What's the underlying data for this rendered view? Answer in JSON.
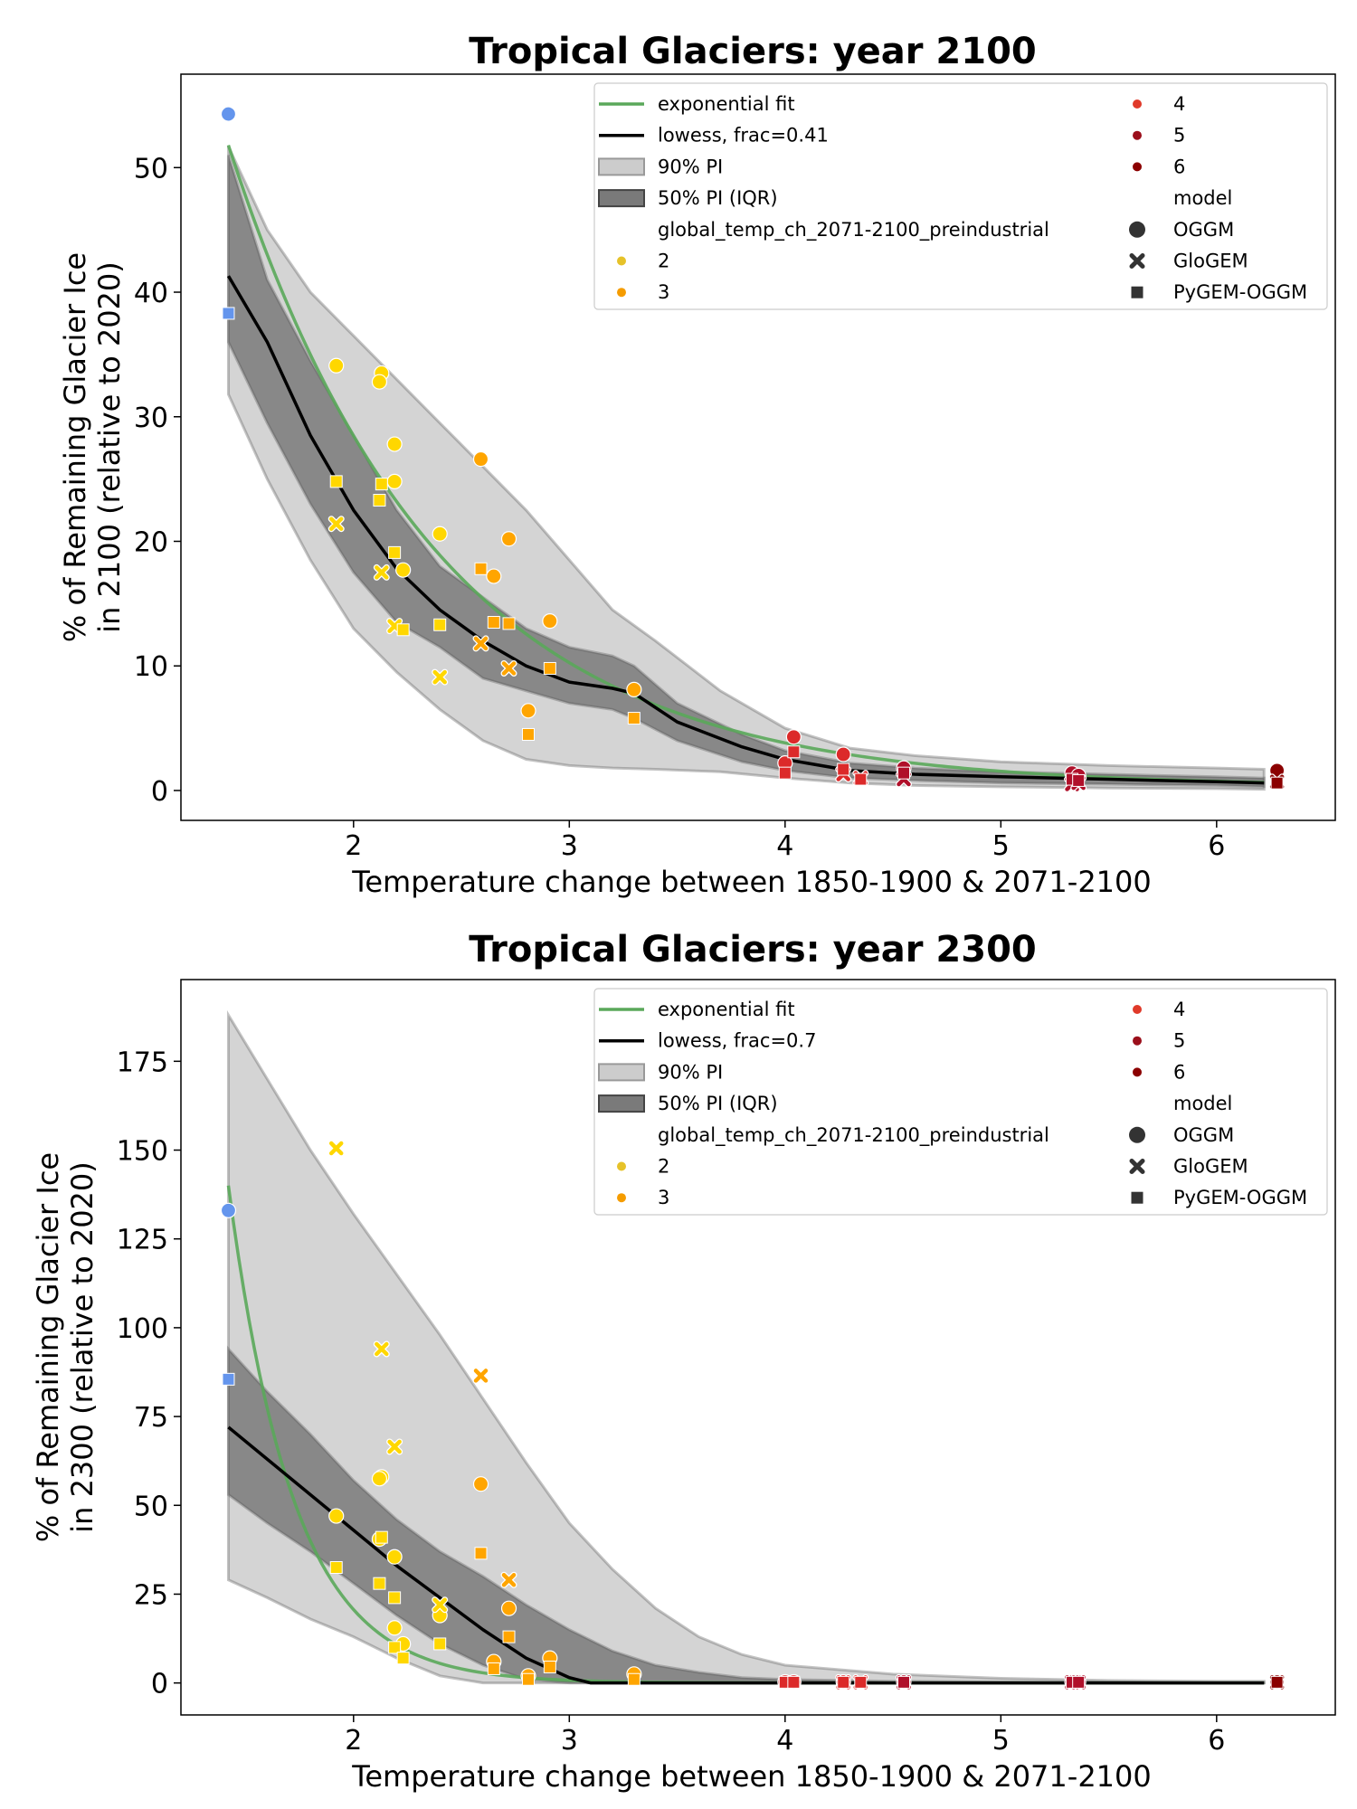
{
  "chart_data": [
    {
      "type": "scatter",
      "title": "Tropical Glaciers:  year 2100",
      "xlabel": "Temperature change between 1850-1900 & 2071-2100",
      "ylabel_line1": "% of Remaining Glacier Ice",
      "ylabel_line2": "in 2100 (relative to 2020)",
      "xlim": [
        1.2,
        6.55
      ],
      "ylim": [
        -2.4,
        57.5
      ],
      "xticks": [
        "2",
        "3",
        "4",
        "5",
        "6"
      ],
      "xtick_values": [
        2,
        3,
        4,
        5,
        6
      ],
      "yticks": [
        "0",
        "10",
        "20",
        "30",
        "40",
        "50"
      ],
      "ytick_values": [
        0,
        10,
        20,
        30,
        40,
        50
      ],
      "grid": false,
      "legend_position": "upper right",
      "legend": {
        "fit_label": "exponential fit",
        "lowess_label": "lowess, frac=0.41",
        "pi90_label": "90% PI",
        "pi50_label": "50% PI (IQR)",
        "hue_title": "global_temp_ch_2071-2100_preindustrial",
        "hue_levels": [
          "2",
          "3",
          "4",
          "5",
          "6"
        ],
        "model_title": "model",
        "models": [
          "OGGM",
          "GloGEM",
          "PyGEM-OGGM"
        ]
      },
      "exp_fit": {
        "a": 51.5,
        "b": 1.04,
        "x0": 1.42,
        "c": 0.3,
        "x_range": [
          1.42,
          6.22
        ]
      },
      "lowess": {
        "x": [
          1.42,
          1.6,
          1.8,
          2.0,
          2.2,
          2.4,
          2.6,
          2.8,
          3.0,
          3.2,
          3.3,
          3.5,
          3.8,
          4.0,
          4.3,
          4.6,
          5.0,
          5.5,
          6.0,
          6.22
        ],
        "y": [
          41.3,
          36.0,
          28.5,
          22.5,
          17.8,
          14.5,
          12.0,
          10.0,
          8.7,
          8.2,
          7.8,
          5.5,
          3.5,
          2.5,
          1.6,
          1.3,
          1.1,
          0.9,
          0.7,
          0.6
        ]
      },
      "pi90": {
        "x": [
          1.42,
          1.6,
          1.8,
          2.0,
          2.2,
          2.4,
          2.6,
          2.8,
          3.0,
          3.2,
          3.4,
          3.7,
          4.0,
          4.3,
          4.6,
          5.0,
          5.5,
          6.0,
          6.22
        ],
        "upper": [
          51.7,
          45.0,
          40.0,
          36.5,
          33.0,
          29.5,
          26.0,
          22.5,
          18.5,
          14.5,
          12.0,
          8.0,
          5.0,
          3.4,
          2.8,
          2.3,
          2.0,
          1.8,
          1.7
        ],
        "lower": [
          31.8,
          25.0,
          18.5,
          13.0,
          9.5,
          6.5,
          4.0,
          2.5,
          2.0,
          1.8,
          1.7,
          1.5,
          1.0,
          0.6,
          0.4,
          0.3,
          0.2,
          0.15,
          0.1
        ]
      },
      "pi50": {
        "x": [
          1.42,
          1.6,
          1.8,
          2.0,
          2.2,
          2.4,
          2.6,
          2.8,
          3.0,
          3.2,
          3.3,
          3.5,
          3.8,
          4.0,
          4.3,
          4.6,
          5.0,
          5.5,
          6.0,
          6.22
        ],
        "upper": [
          51.0,
          41.0,
          34.5,
          28.5,
          22.5,
          18.0,
          15.5,
          13.0,
          11.5,
          10.8,
          10.0,
          7.0,
          4.5,
          3.2,
          2.2,
          1.8,
          1.5,
          1.3,
          1.1,
          1.0
        ],
        "lower": [
          36.0,
          29.5,
          23.0,
          17.5,
          13.5,
          11.5,
          9.0,
          8.0,
          7.0,
          6.5,
          5.8,
          4.0,
          2.3,
          1.6,
          1.0,
          0.8,
          0.6,
          0.5,
          0.4,
          0.3
        ]
      },
      "series": [
        {
          "model": "OGGM",
          "points": [
            [
              1.42,
              54.3,
              "1.5"
            ],
            [
              1.92,
              34.1,
              "2"
            ],
            [
              2.13,
              33.5,
              "2"
            ],
            [
              2.12,
              32.8,
              "2"
            ],
            [
              2.19,
              27.8,
              "2"
            ],
            [
              2.19,
              24.8,
              "2"
            ],
            [
              2.23,
              17.7,
              "2"
            ],
            [
              2.4,
              20.6,
              "2"
            ],
            [
              2.59,
              26.6,
              "3"
            ],
            [
              2.72,
              20.2,
              "3"
            ],
            [
              2.65,
              17.2,
              "3"
            ],
            [
              2.91,
              13.6,
              "3"
            ],
            [
              2.81,
              6.4,
              "3"
            ],
            [
              3.3,
              8.1,
              "3"
            ],
            [
              4.04,
              4.3,
              "4"
            ],
            [
              4.0,
              2.2,
              "4"
            ],
            [
              4.27,
              2.9,
              "4"
            ],
            [
              4.55,
              1.8,
              "5"
            ],
            [
              5.33,
              1.4,
              "5"
            ],
            [
              5.36,
              1.2,
              "5"
            ],
            [
              6.28,
              1.6,
              "6"
            ]
          ]
        },
        {
          "model": "GloGEM",
          "points": [
            [
              1.92,
              21.4,
              "2"
            ],
            [
              2.13,
              17.5,
              "2"
            ],
            [
              2.19,
              13.2,
              "2"
            ],
            [
              2.4,
              9.1,
              "2"
            ],
            [
              2.59,
              11.8,
              "3"
            ],
            [
              2.72,
              9.8,
              "3"
            ],
            [
              4.27,
              1.3,
              "4"
            ],
            [
              4.35,
              1.0,
              "4"
            ],
            [
              4.55,
              0.9,
              "5"
            ],
            [
              5.33,
              0.5,
              "5"
            ],
            [
              5.36,
              0.6,
              "5"
            ],
            [
              6.28,
              0.7,
              "6"
            ]
          ]
        },
        {
          "model": "PyGEM-OGGM",
          "points": [
            [
              1.42,
              38.3,
              "1.5"
            ],
            [
              1.92,
              24.8,
              "2"
            ],
            [
              2.13,
              24.6,
              "2"
            ],
            [
              2.12,
              23.3,
              "2"
            ],
            [
              2.19,
              19.1,
              "2"
            ],
            [
              2.23,
              12.9,
              "2"
            ],
            [
              2.4,
              13.3,
              "2"
            ],
            [
              2.59,
              17.8,
              "3"
            ],
            [
              2.65,
              13.5,
              "3"
            ],
            [
              2.72,
              13.4,
              "3"
            ],
            [
              2.91,
              9.8,
              "3"
            ],
            [
              2.81,
              4.5,
              "3"
            ],
            [
              3.3,
              5.8,
              "3"
            ],
            [
              4.04,
              3.1,
              "4"
            ],
            [
              4.0,
              1.4,
              "4"
            ],
            [
              4.27,
              1.7,
              "4"
            ],
            [
              4.35,
              0.9,
              "4"
            ],
            [
              4.55,
              1.4,
              "5"
            ],
            [
              5.33,
              0.9,
              "5"
            ],
            [
              5.36,
              0.8,
              "5"
            ],
            [
              6.28,
              0.6,
              "6"
            ]
          ]
        }
      ]
    },
    {
      "type": "scatter",
      "title": "Tropical Glaciers:  year 2300",
      "xlabel": "Temperature change between 1850-1900 & 2071-2100",
      "ylabel_line1": "% of Remaining Glacier Ice",
      "ylabel_line2": "in 2300 (relative to 2020)",
      "xlim": [
        1.2,
        6.55
      ],
      "ylim": [
        -9,
        198
      ],
      "xticks": [
        "2",
        "3",
        "4",
        "5",
        "6"
      ],
      "xtick_values": [
        2,
        3,
        4,
        5,
        6
      ],
      "yticks": [
        "0",
        "25",
        "50",
        "75",
        "100",
        "125",
        "150",
        "175"
      ],
      "ytick_values": [
        0,
        25,
        50,
        75,
        100,
        125,
        150,
        175
      ],
      "grid": false,
      "legend_position": "upper right",
      "legend": {
        "fit_label": "exponential fit",
        "lowess_label": "lowess, frac=0.7",
        "pi90_label": "90% PI",
        "pi50_label": "50% PI (IQR)",
        "hue_title": "global_temp_ch_2071-2100_preindustrial",
        "hue_levels": [
          "2",
          "3",
          "4",
          "5",
          "6"
        ],
        "model_title": "model",
        "models": [
          "OGGM",
          "GloGEM",
          "PyGEM-OGGM"
        ]
      },
      "exp_fit": {
        "a": 140,
        "b": 3.3,
        "x0": 1.42,
        "c": 0.0,
        "x_range": [
          1.42,
          6.22
        ]
      },
      "lowess": {
        "x": [
          1.42,
          1.6,
          1.8,
          2.0,
          2.2,
          2.4,
          2.6,
          2.8,
          3.0,
          3.1,
          3.5,
          4.0,
          5.0,
          6.0,
          6.22
        ],
        "y": [
          72,
          63,
          53,
          43,
          33,
          24,
          15,
          7,
          1.5,
          0,
          0,
          0,
          0,
          0,
          0
        ]
      },
      "pi90": {
        "x": [
          1.42,
          1.6,
          1.8,
          2.0,
          2.2,
          2.4,
          2.6,
          2.8,
          3.0,
          3.2,
          3.4,
          3.6,
          3.8,
          4.0,
          4.5,
          5.0,
          5.5,
          6.0,
          6.22
        ],
        "upper": [
          188,
          170,
          150,
          132,
          115,
          98,
          80,
          62,
          45,
          32,
          21,
          13,
          8,
          5,
          2.5,
          1.3,
          0.7,
          0.5,
          0.5
        ],
        "lower": [
          29,
          24,
          18,
          13,
          7,
          2,
          0,
          0,
          0,
          0,
          0,
          0,
          0,
          0,
          0,
          0,
          0,
          0,
          0
        ]
      },
      "pi50": {
        "x": [
          1.42,
          1.6,
          1.8,
          2.0,
          2.2,
          2.4,
          2.6,
          2.8,
          3.0,
          3.2,
          3.4,
          3.6,
          3.8,
          4.0,
          4.5,
          5.0,
          5.5,
          6.0,
          6.22
        ],
        "upper": [
          94,
          82,
          70,
          57,
          46,
          37,
          30,
          22,
          15,
          9,
          5,
          3,
          1.5,
          1,
          0.5,
          0.3,
          0.2,
          0.1,
          0.1
        ],
        "lower": [
          53,
          45,
          37,
          28,
          19,
          11,
          5,
          1,
          0,
          0,
          0,
          0,
          0,
          0,
          0,
          0,
          0,
          0,
          0
        ]
      },
      "series": [
        {
          "model": "OGGM",
          "points": [
            [
              1.42,
              133,
              "1.5"
            ],
            [
              1.92,
              47,
              "2"
            ],
            [
              2.13,
              58,
              "2"
            ],
            [
              2.12,
              57.5,
              "2"
            ],
            [
              2.12,
              40.5,
              "2"
            ],
            [
              2.19,
              35.5,
              "2"
            ],
            [
              2.19,
              15.5,
              "2"
            ],
            [
              2.23,
              11,
              "2"
            ],
            [
              2.4,
              19,
              "2"
            ],
            [
              2.59,
              56,
              "3"
            ],
            [
              2.72,
              21,
              "3"
            ],
            [
              2.65,
              6,
              "3"
            ],
            [
              2.91,
              7,
              "3"
            ],
            [
              2.81,
              2,
              "3"
            ],
            [
              3.3,
              2.5,
              "3"
            ],
            [
              4.0,
              0.3,
              "4"
            ],
            [
              4.04,
              0.3,
              "4"
            ],
            [
              4.27,
              0.3,
              "4"
            ],
            [
              4.55,
              0.3,
              "5"
            ],
            [
              5.33,
              0.3,
              "5"
            ],
            [
              5.36,
              0.3,
              "5"
            ],
            [
              6.28,
              0.3,
              "6"
            ]
          ]
        },
        {
          "model": "GloGEM",
          "points": [
            [
              1.92,
              150.5,
              "2"
            ],
            [
              2.13,
              94,
              "2"
            ],
            [
              2.19,
              66.5,
              "2"
            ],
            [
              2.4,
              22,
              "2"
            ],
            [
              2.59,
              86.5,
              "3"
            ],
            [
              2.72,
              29,
              "3"
            ],
            [
              4.27,
              0.2,
              "4"
            ],
            [
              4.35,
              0.2,
              "4"
            ],
            [
              4.55,
              0.2,
              "5"
            ],
            [
              5.33,
              0.2,
              "5"
            ],
            [
              5.36,
              0.2,
              "5"
            ],
            [
              6.28,
              0.2,
              "6"
            ]
          ]
        },
        {
          "model": "PyGEM-OGGM",
          "points": [
            [
              1.42,
              85.5,
              "1.5"
            ],
            [
              1.92,
              32.5,
              "2"
            ],
            [
              2.13,
              41,
              "2"
            ],
            [
              2.12,
              28,
              "2"
            ],
            [
              2.19,
              24,
              "2"
            ],
            [
              2.19,
              10,
              "2"
            ],
            [
              2.23,
              7,
              "2"
            ],
            [
              2.4,
              11,
              "2"
            ],
            [
              2.59,
              36.5,
              "3"
            ],
            [
              2.72,
              13,
              "3"
            ],
            [
              2.65,
              4,
              "3"
            ],
            [
              2.91,
              4.5,
              "3"
            ],
            [
              2.81,
              1,
              "3"
            ],
            [
              3.3,
              1,
              "3"
            ],
            [
              4.0,
              0.2,
              "4"
            ],
            [
              4.04,
              0.2,
              "4"
            ],
            [
              4.27,
              0.2,
              "4"
            ],
            [
              4.35,
              0.2,
              "4"
            ],
            [
              4.55,
              0.2,
              "5"
            ],
            [
              5.33,
              0.2,
              "5"
            ],
            [
              5.36,
              0.2,
              "5"
            ],
            [
              6.28,
              0.2,
              "6"
            ]
          ]
        }
      ]
    }
  ],
  "colors": {
    "level_1.5": "#6495ed",
    "level_2": "#ffd700",
    "level_3": "#ffa500",
    "level_4": "#dc2a2a",
    "level_5": "#b0102a",
    "level_6": "#8b0000",
    "legend_2": "#e6c229",
    "legend_3": "#f59c00",
    "legend_4": "#e03a2a",
    "legend_5": "#9b0f1b",
    "legend_6": "#8b0000",
    "fit_line": "#5aa85a",
    "lowess_line": "#000000",
    "pi90_fill": "#cccccc",
    "pi50_fill": "#7a7a7a"
  }
}
